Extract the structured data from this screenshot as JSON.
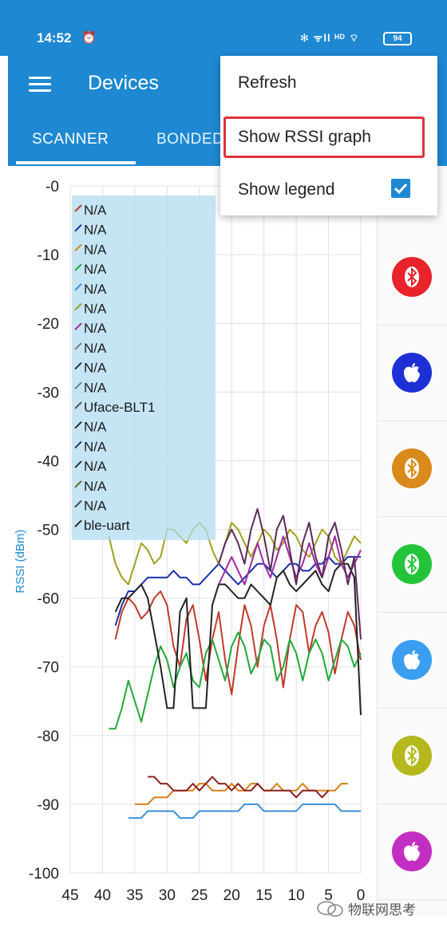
{
  "status_bar": {
    "time": "14:52",
    "icons_text": "✻ ᯤll ᴴᴰ ⌔",
    "battery": "94"
  },
  "app_bar": {
    "title": "Devices",
    "tabs": [
      {
        "label": "SCANNER",
        "selected": true
      },
      {
        "label": "BONDED",
        "selected": false
      }
    ]
  },
  "menu": {
    "items": [
      {
        "label": "Refresh"
      },
      {
        "label": "Show RSSI graph",
        "highlighted": true
      },
      {
        "label": "Show legend",
        "checked": true
      }
    ]
  },
  "device_icons": [
    {
      "icon": "bluetooth-icon",
      "color": "#e8232a"
    },
    {
      "icon": "apple-icon",
      "color": "#1f2fd6"
    },
    {
      "icon": "bluetooth-icon",
      "color": "#d98a1a"
    },
    {
      "icon": "bluetooth-icon",
      "color": "#23c43a"
    },
    {
      "icon": "apple-icon",
      "color": "#3a9ff0"
    },
    {
      "icon": "bluetooth-icon",
      "color": "#b4b81c"
    },
    {
      "icon": "apple-icon",
      "color": "#c22ec2"
    }
  ],
  "chart_data": {
    "type": "line",
    "ylabel": "RSSI (dBm)",
    "xlabel": "",
    "xlim": [
      45,
      0
    ],
    "ylim": [
      -100,
      0
    ],
    "x_ticks": [
      "45",
      "40",
      "35",
      "30",
      "25",
      "20",
      "15",
      "10",
      "5",
      "0"
    ],
    "y_ticks": [
      "-0",
      "-10",
      "-20",
      "-30",
      "-40",
      "-50",
      "-60",
      "-70",
      "-80",
      "-90",
      "-100"
    ],
    "grid": true,
    "legend_position": "top-left",
    "legend": [
      {
        "name": "N/A",
        "color": "#c0392b"
      },
      {
        "name": "N/A",
        "color": "#1b2fa8"
      },
      {
        "name": "N/A",
        "color": "#d4801e"
      },
      {
        "name": "N/A",
        "color": "#22a83a"
      },
      {
        "name": "N/A",
        "color": "#3a8fd8"
      },
      {
        "name": "N/A",
        "color": "#a0a020"
      },
      {
        "name": "N/A",
        "color": "#a02aa0"
      },
      {
        "name": "N/A",
        "color": "#7a7a7a"
      },
      {
        "name": "N/A",
        "color": "#24324a"
      },
      {
        "name": "N/A",
        "color": "#5a8a8a"
      },
      {
        "name": "Uface-BLT1",
        "color": "#555555"
      },
      {
        "name": "N/A",
        "color": "#2a2a2a"
      },
      {
        "name": "N/A",
        "color": "#2a3a6a"
      },
      {
        "name": "N/A",
        "color": "#303030"
      },
      {
        "name": "N/A",
        "color": "#6a6a2a"
      },
      {
        "name": "N/A",
        "color": "#4a4a4a"
      },
      {
        "name": "ble-uart",
        "color": "#2a2a2a"
      }
    ],
    "series": [
      {
        "color": "#1b2fa8",
        "x": [
          38,
          37,
          36,
          35,
          34,
          33,
          32,
          31,
          30,
          29,
          28,
          27,
          26,
          25,
          24,
          23,
          22,
          21,
          20,
          19,
          18,
          17,
          16,
          15,
          14,
          13,
          12,
          11,
          10,
          9,
          8,
          7,
          6,
          5,
          4,
          3,
          2,
          1,
          0
        ],
        "y": [
          -64,
          -61,
          -59,
          -59,
          -58,
          -57,
          -57,
          -57,
          -57,
          -56,
          -57,
          -57,
          -58,
          -58,
          -57,
          -56,
          -55,
          -56,
          -57,
          -58,
          -57,
          -56,
          -55,
          -55,
          -56,
          -57,
          -56,
          -55,
          -55,
          -56,
          -56,
          -55,
          -55,
          -54,
          -55,
          -55,
          -54,
          -54,
          -54
        ]
      },
      {
        "color": "#c0392b",
        "x": [
          38,
          37,
          36,
          35,
          34,
          33,
          32,
          31,
          30,
          29,
          28,
          27,
          26,
          25,
          24,
          23,
          22,
          21,
          20,
          19,
          18,
          17,
          16,
          15,
          14,
          13,
          12,
          11,
          10,
          9,
          8,
          7,
          6,
          5,
          4,
          3,
          2,
          1,
          0
        ],
        "y": [
          -66,
          -62,
          -60,
          -61,
          -63,
          -62,
          -60,
          -59,
          -61,
          -67,
          -70,
          -63,
          -61,
          -66,
          -72,
          -66,
          -62,
          -69,
          -74,
          -67,
          -61,
          -64,
          -70,
          -64,
          -61,
          -66,
          -73,
          -66,
          -61,
          -62,
          -68,
          -64,
          -62,
          -65,
          -71,
          -66,
          -62,
          -64,
          -69
        ]
      },
      {
        "color": "#22a83a",
        "x": [
          39,
          38,
          37,
          36,
          35,
          34,
          33,
          32,
          31,
          30,
          29,
          28,
          27,
          26,
          25,
          24,
          23,
          22,
          21,
          20,
          19,
          18,
          17,
          16,
          15,
          14,
          13,
          12,
          11,
          10,
          9,
          8,
          7,
          6,
          5,
          4,
          3,
          2,
          1,
          0
        ],
        "y": [
          -79,
          -79,
          -76,
          -72,
          -75,
          -78,
          -74,
          -70,
          -67,
          -69,
          -73,
          -70,
          -68,
          -72,
          -73,
          -68,
          -66,
          -69,
          -72,
          -67,
          -65,
          -67,
          -71,
          -69,
          -66,
          -67,
          -72,
          -70,
          -66,
          -68,
          -72,
          -68,
          -66,
          -68,
          -72,
          -69,
          -66,
          -67,
          -70,
          -68
        ]
      },
      {
        "color": "#a0a020",
        "x": [
          39,
          38,
          37,
          36,
          35,
          34,
          33,
          32,
          31,
          30,
          29,
          28,
          27,
          26,
          25,
          24,
          23,
          22,
          21,
          20,
          19,
          18,
          17,
          16,
          15,
          14,
          13,
          12,
          11,
          10,
          9,
          8,
          7,
          6,
          5,
          4,
          3,
          2,
          1,
          0
        ],
        "y": [
          -51,
          -55,
          -57,
          -58,
          -55,
          -52,
          -53,
          -55,
          -54,
          -50,
          -50,
          -51,
          -52,
          -50,
          -49,
          -50,
          -53,
          -55,
          -52,
          -49,
          -50,
          -52,
          -54,
          -52,
          -50,
          -51,
          -53,
          -52,
          -50,
          -51,
          -53,
          -54,
          -52,
          -50,
          -51,
          -54,
          -55,
          -53,
          -51,
          -52
        ]
      },
      {
        "color": "#222222",
        "x": [
          38,
          37,
          36,
          35,
          34,
          33,
          32,
          31,
          30,
          29,
          28,
          27,
          26,
          25,
          24,
          23,
          22,
          21,
          20,
          19,
          18,
          17,
          16,
          15,
          14,
          13,
          12,
          11,
          10,
          9,
          8,
          7,
          6,
          5,
          4,
          3,
          2,
          1,
          0
        ],
        "y": [
          -62,
          -60,
          -60,
          -59,
          -58,
          -60,
          -65,
          -70,
          -76,
          -76,
          -62,
          -60,
          -76,
          -76,
          -76,
          -61,
          -58,
          -58,
          -59,
          -60,
          -60,
          -58,
          -59,
          -60,
          -61,
          -57,
          -56,
          -58,
          -59,
          -58,
          -57,
          -56,
          -58,
          -59,
          -56,
          -55,
          -55,
          -57,
          -77
        ]
      },
      {
        "color": "#a02aa0",
        "x": [
          22,
          21,
          20,
          19,
          18,
          17,
          16,
          15,
          14,
          13,
          12,
          11,
          10,
          9,
          8,
          7,
          6,
          5,
          4,
          3,
          2,
          1,
          0
        ],
        "y": [
          -58,
          -56,
          -54,
          -56,
          -58,
          -55,
          -52,
          -55,
          -57,
          -54,
          -51,
          -54,
          -57,
          -55,
          -52,
          -55,
          -57,
          -54,
          -51,
          -55,
          -57,
          -55,
          -53
        ]
      },
      {
        "color": "#5a2a5a",
        "x": [
          22,
          21,
          20,
          19,
          18,
          17,
          16,
          15,
          14,
          13,
          12,
          11,
          10,
          9,
          8,
          7,
          6,
          5,
          4,
          3,
          2,
          1,
          0
        ],
        "y": [
          -55,
          -52,
          -50,
          -52,
          -55,
          -50,
          -47,
          -51,
          -56,
          -50,
          -48,
          -53,
          -58,
          -52,
          -49,
          -54,
          -57,
          -51,
          -49,
          -53,
          -58,
          -54,
          -66
        ]
      },
      {
        "color": "#d4801e",
        "x": [
          35,
          34,
          33,
          32,
          31,
          30,
          29,
          28,
          27,
          26,
          25,
          24,
          23,
          22,
          21,
          20,
          19,
          18,
          17,
          16,
          15,
          14,
          13,
          12,
          11,
          10,
          9,
          8,
          7,
          6,
          5,
          4,
          3,
          2
        ],
        "y": [
          -90,
          -90,
          -90,
          -89,
          -89,
          -89,
          -88,
          -88,
          -88,
          -88,
          -87,
          -87,
          -88,
          -88,
          -88,
          -87,
          -88,
          -88,
          -87,
          -87,
          -88,
          -88,
          -87,
          -88,
          -88,
          -88,
          -87,
          -88,
          -88,
          -88,
          -88,
          -88,
          -87,
          -87
        ]
      },
      {
        "color": "#3a8fd8",
        "x": [
          36,
          35,
          34,
          33,
          32,
          31,
          30,
          29,
          28,
          27,
          26,
          25,
          24,
          23,
          22,
          21,
          20,
          19,
          18,
          17,
          16,
          15,
          14,
          13,
          12,
          11,
          10,
          9,
          8,
          7,
          6,
          5,
          4,
          3,
          2,
          1,
          0
        ],
        "y": [
          -92,
          -92,
          -92,
          -91,
          -91,
          -91,
          -91,
          -91,
          -92,
          -92,
          -92,
          -91,
          -91,
          -91,
          -91,
          -91,
          -91,
          -91,
          -90,
          -90,
          -90,
          -91,
          -91,
          -91,
          -91,
          -91,
          -91,
          -90,
          -90,
          -90,
          -90,
          -90,
          -90,
          -91,
          -91,
          -91,
          -91
        ]
      },
      {
        "color": "#8a2020",
        "x": [
          33,
          32,
          31,
          30,
          29,
          28,
          27,
          26,
          25,
          24,
          23,
          22,
          21,
          20,
          19,
          18,
          17,
          16,
          15,
          14,
          13,
          12,
          11,
          10,
          9,
          8,
          7,
          6,
          5
        ],
        "y": [
          -86,
          -86,
          -87,
          -87,
          -88,
          -88,
          -88,
          -87,
          -88,
          -87,
          -86,
          -87,
          -87,
          -88,
          -87,
          -88,
          -88,
          -87,
          -88,
          -88,
          -88,
          -88,
          -88,
          -89,
          -88,
          -88,
          -88,
          -89,
          -88
        ]
      }
    ]
  },
  "watermark": "物联网思考"
}
